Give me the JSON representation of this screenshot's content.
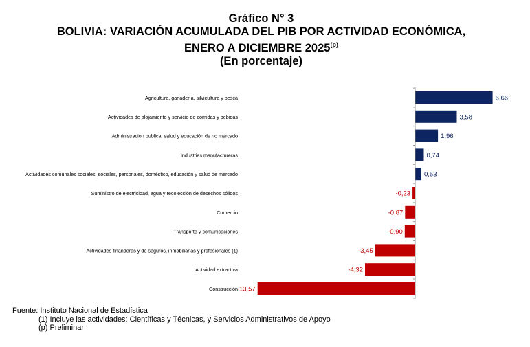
{
  "titles": {
    "line1": "Gráfico N° 3",
    "line2": "BOLIVIA: VARIACIÓN ACUMULADA DEL PIB POR ACTIVIDAD ECONÓMICA,",
    "line3": "ENERO A DICIEMBRE 2025",
    "line3_sup": "(p)",
    "line4": "(En porcentaje)"
  },
  "chart_data": {
    "type": "bar",
    "orientation": "horizontal",
    "title": "BOLIVIA: VARIACIÓN ACUMULADA DEL PIB POR ACTIVIDAD ECONÓMICA, ENERO A DICIEMBRE 2025(p)",
    "unit": "En porcentaje",
    "categories": [
      "Agricultura, ganadería, silvicultura y pesca",
      "Actividades de alojamiento y  servicio de comidas y bebidas",
      "Administracion publica, salud y educación de no mercado",
      "Industrias manufactureras",
      "Actividades comunales sociales, sociales, personales, doméstico, educación y salud de mercado",
      "Suministro de electricidad, agua y recolección de desechos sólidos",
      "Comercio",
      "Transporte y comunicaciones",
      "Actividades finanderas y de seguros, inmobiliarias y profesionales (1)",
      "Actividad extractiva",
      "Construcción"
    ],
    "values": [
      6.66,
      3.58,
      1.96,
      0.74,
      0.53,
      -0.23,
      -0.87,
      -0.9,
      -3.45,
      -4.32,
      -13.57
    ],
    "value_labels": [
      "6,66",
      "3,58",
      "1,96",
      "0,74",
      "0,53",
      "-0,23",
      "-0,87",
      "-0,90",
      "-3,45",
      "-4,32",
      "-13,57"
    ],
    "xlim": [
      -13.57,
      6.66
    ],
    "colors": {
      "positive": "#0d2560",
      "negative": "#c00000",
      "positive_label": "#0d2560",
      "negative_label": "#c00000"
    }
  },
  "footer": {
    "source": "Fuente: Instituto Nacional de Estadística",
    "note1": "(1) Incluye las actividades: Científicas y Técnicas, y Servicios Administrativos de Apoyo",
    "note2": "(p) Preliminar"
  }
}
